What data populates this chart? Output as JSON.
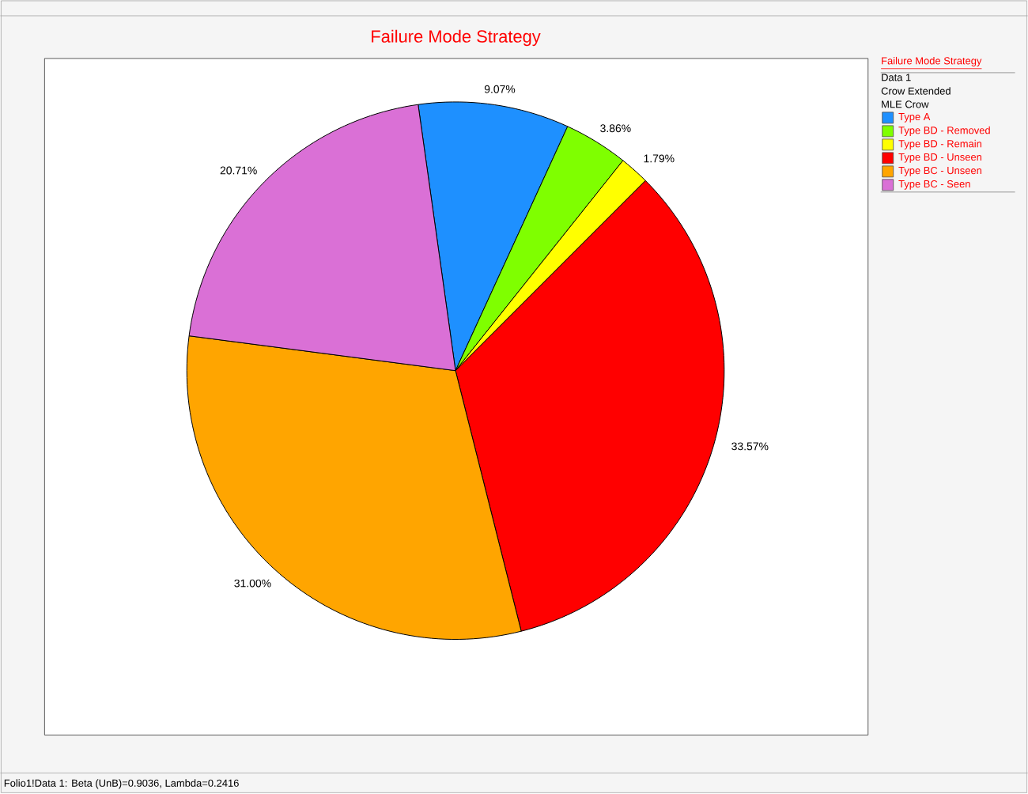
{
  "chart_data": {
    "type": "pie",
    "title": "Failure Mode Strategy",
    "legend_title": "Failure Mode Strategy",
    "categories": [
      "Type A",
      "Type BD - Removed",
      "Type BD - Remain",
      "Type BD - Unseen",
      "Type BC - Unseen",
      "Type BC - Seen"
    ],
    "values": [
      9.07,
      3.86,
      1.79,
      33.57,
      31.0,
      20.71
    ],
    "value_labels": [
      "9.07%",
      "3.86%",
      "1.79%",
      "33.57%",
      "31.00%",
      "20.71%"
    ],
    "colors": [
      "#1e90ff",
      "#7fff00",
      "#ffff00",
      "#ff0000",
      "#ffa500",
      "#da70d6"
    ],
    "legend": "right",
    "annotations": [
      "Data 1",
      "Crow Extended",
      "MLE Crow",
      "Folio1!Data 1: Beta (UnB)=0.9036, Lambda=0.2416"
    ]
  }
}
